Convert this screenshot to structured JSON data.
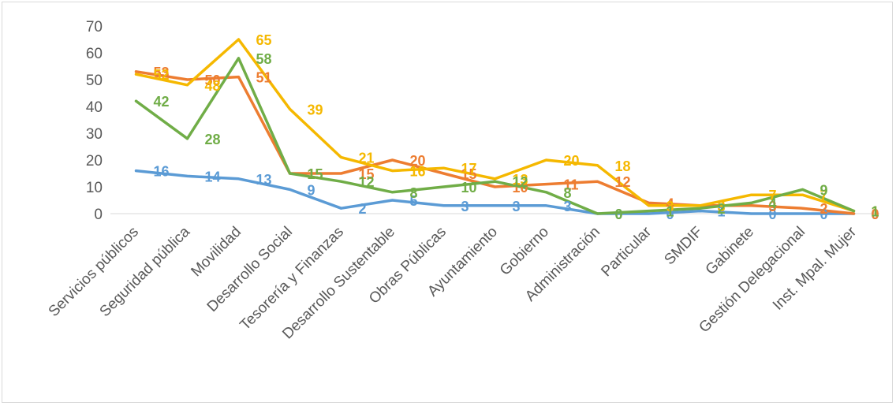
{
  "chart_data": {
    "type": "line",
    "title": "",
    "xlabel": "",
    "ylabel": "",
    "ylim": [
      0,
      70
    ],
    "yticks": [
      "0",
      "10",
      "20",
      "30",
      "40",
      "50",
      "60",
      "70"
    ],
    "grid": false,
    "legend": "none",
    "categories": [
      "Servicios públicos",
      "Seguridad pública",
      "Movilidad",
      "Desarrollo Social",
      "Tesorería y Finanzas",
      "Desarrollo Sustentable",
      "Obras Públicas",
      "Ayuntamiento",
      "Gobierno",
      "Administración",
      "Particular",
      "SMDIF",
      "Gabinete",
      "Gestión Delegacional",
      "Inst. Mpal. Mujer"
    ],
    "series": [
      {
        "color": "#5b9bd5",
        "values": [
          16,
          14,
          13,
          9,
          2,
          5,
          3,
          3,
          3,
          0,
          0,
          1,
          0,
          0,
          0
        ],
        "labels": [
          "16",
          "14",
          "13",
          "9",
          "2",
          "5",
          "3",
          "3",
          "3",
          "0",
          "0",
          "1",
          "0",
          "0",
          "0"
        ]
      },
      {
        "color": "#ed7d31",
        "values": [
          53,
          50,
          51,
          15,
          15,
          20,
          15,
          10,
          11,
          12,
          4,
          3,
          3,
          2,
          0
        ],
        "labels": [
          "53",
          "50",
          "51",
          "15",
          "15",
          "20",
          "15",
          "10",
          "11",
          "12",
          "4",
          "3",
          "3",
          "2",
          "0"
        ]
      },
      {
        "color": "#f5b800",
        "values": [
          52,
          48,
          65,
          39,
          21,
          16,
          17,
          13,
          20,
          18,
          3,
          3,
          7,
          7,
          1
        ],
        "labels": [
          "52",
          "48",
          "65",
          "39",
          "21",
          "16",
          "17",
          "13",
          "20",
          "18",
          "3",
          "3",
          "7",
          "7",
          "1"
        ]
      },
      {
        "color": "#70ad47",
        "values": [
          42,
          28,
          58,
          15,
          12,
          8,
          10,
          12,
          8,
          0,
          1,
          2,
          4,
          9,
          1
        ],
        "labels": [
          "42",
          "28",
          "58",
          "15",
          "12",
          "8",
          "10",
          "12",
          "8",
          "0",
          "1",
          "2",
          "4",
          "9",
          "1"
        ]
      }
    ]
  }
}
